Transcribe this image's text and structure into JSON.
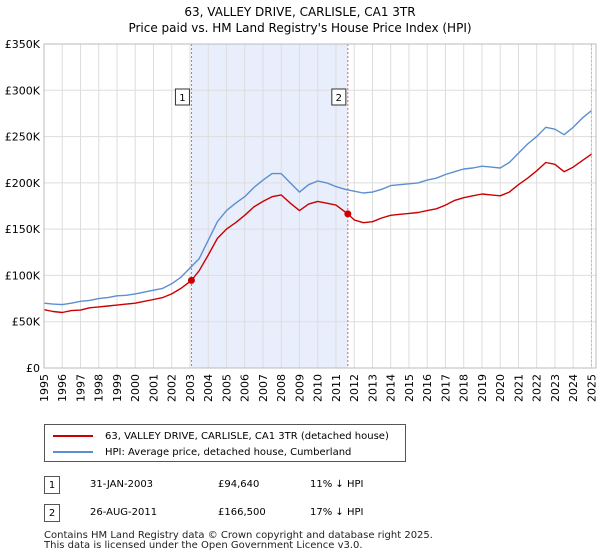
{
  "chart_data": {
    "type": "line",
    "title": "63, VALLEY DRIVE, CARLISLE, CA1 3TR",
    "subtitle": "Price paid vs. HM Land Registry's House Price Index (HPI)",
    "xlabel": "",
    "ylabel": "",
    "xlim": [
      1995,
      2025.25
    ],
    "ylim": [
      0,
      350000
    ],
    "yticks": [
      0,
      50000,
      100000,
      150000,
      200000,
      250000,
      300000,
      350000
    ],
    "ytick_labels": [
      "£0",
      "£50K",
      "£100K",
      "£150K",
      "£200K",
      "£250K",
      "£300K",
      "£350K"
    ],
    "xticks": [
      1995,
      1996,
      1997,
      1998,
      1999,
      2000,
      2001,
      2002,
      2003,
      2004,
      2005,
      2006,
      2007,
      2008,
      2009,
      2010,
      2011,
      2012,
      2013,
      2014,
      2015,
      2016,
      2017,
      2018,
      2019,
      2020,
      2021,
      2022,
      2023,
      2024,
      2025
    ],
    "grid": true,
    "shaded_region": [
      2003.08,
      2011.65
    ],
    "series": [
      {
        "name": "63, VALLEY DRIVE, CARLISLE, CA1 3TR (detached house)",
        "color": "#cc0000",
        "x": [
          1995.0,
          1995.5,
          1996.0,
          1996.5,
          1997.0,
          1997.5,
          1998.0,
          1998.5,
          1999.0,
          1999.5,
          2000.0,
          2000.5,
          2001.0,
          2001.5,
          2002.0,
          2002.5,
          2003.08,
          2003.5,
          2004.0,
          2004.5,
          2005.0,
          2005.5,
          2006.0,
          2006.5,
          2007.0,
          2007.5,
          2008.0,
          2008.5,
          2009.0,
          2009.5,
          2010.0,
          2010.5,
          2011.0,
          2011.65,
          2012.0,
          2012.5,
          2013.0,
          2013.5,
          2014.0,
          2014.5,
          2015.0,
          2015.5,
          2016.0,
          2016.5,
          2017.0,
          2017.5,
          2018.0,
          2018.5,
          2019.0,
          2019.5,
          2020.0,
          2020.5,
          2021.0,
          2021.5,
          2022.0,
          2022.5,
          2023.0,
          2023.5,
          2024.0,
          2024.5,
          2025.0
        ],
        "values": [
          63000,
          61000,
          60000,
          62000,
          62500,
          65000,
          66000,
          67000,
          68000,
          69000,
          70000,
          72000,
          74000,
          76000,
          80000,
          86000,
          94640,
          105000,
          122000,
          140000,
          150000,
          157000,
          165000,
          174000,
          180000,
          185000,
          187000,
          178000,
          170000,
          177000,
          180000,
          178000,
          176000,
          166500,
          160000,
          157000,
          158000,
          162000,
          165000,
          166000,
          167000,
          168000,
          170000,
          172000,
          176000,
          181000,
          184000,
          186000,
          188000,
          187000,
          186000,
          190000,
          198000,
          205000,
          213000,
          222000,
          220000,
          212000,
          217000,
          224000,
          231000
        ]
      },
      {
        "name": "HPI: Average price, detached house, Cumberland",
        "color": "#5b8fd0",
        "x": [
          1995.0,
          1995.5,
          1996.0,
          1996.5,
          1997.0,
          1997.5,
          1998.0,
          1998.5,
          1999.0,
          1999.5,
          2000.0,
          2000.5,
          2001.0,
          2001.5,
          2002.0,
          2002.5,
          2003.0,
          2003.5,
          2004.0,
          2004.5,
          2005.0,
          2005.5,
          2006.0,
          2006.5,
          2007.0,
          2007.5,
          2008.0,
          2008.5,
          2009.0,
          2009.5,
          2010.0,
          2010.5,
          2011.0,
          2011.5,
          2012.0,
          2012.5,
          2013.0,
          2013.5,
          2014.0,
          2014.5,
          2015.0,
          2015.5,
          2016.0,
          2016.5,
          2017.0,
          2017.5,
          2018.0,
          2018.5,
          2019.0,
          2019.5,
          2020.0,
          2020.5,
          2021.0,
          2021.5,
          2022.0,
          2022.5,
          2023.0,
          2023.5,
          2024.0,
          2024.5,
          2025.0
        ],
        "values": [
          70000,
          69000,
          68500,
          70000,
          72000,
          73000,
          75000,
          76000,
          78000,
          78500,
          80000,
          82000,
          84000,
          86000,
          91000,
          98000,
          108000,
          118000,
          138000,
          158000,
          170000,
          178000,
          185000,
          195000,
          203000,
          210000,
          210000,
          200000,
          190000,
          198000,
          202000,
          200000,
          196000,
          193000,
          191000,
          189000,
          190000,
          193000,
          197000,
          198000,
          199000,
          200000,
          203000,
          205000,
          209000,
          212000,
          215000,
          216000,
          218000,
          217000,
          216000,
          222000,
          232000,
          242000,
          250000,
          260000,
          258000,
          252000,
          260000,
          270000,
          278000
        ]
      }
    ],
    "markers": [
      {
        "label": "1",
        "x": 2003.08,
        "y": 94640
      },
      {
        "label": "2",
        "x": 2011.65,
        "y": 166500
      }
    ]
  },
  "legend": {
    "items": [
      {
        "label": "63, VALLEY DRIVE, CARLISLE, CA1 3TR (detached house)",
        "color": "#cc0000"
      },
      {
        "label": "HPI: Average price, detached house, Cumberland",
        "color": "#5b8fd0"
      }
    ]
  },
  "sales": [
    {
      "num": "1",
      "date": "31-JAN-2003",
      "price": "£94,640",
      "hpi": "11% ↓ HPI"
    },
    {
      "num": "2",
      "date": "26-AUG-2011",
      "price": "£166,500",
      "hpi": "17% ↓ HPI"
    }
  ],
  "footer": {
    "line1": "Contains HM Land Registry data © Crown copyright and database right 2025.",
    "line2": "This data is licensed under the Open Government Licence v3.0."
  }
}
